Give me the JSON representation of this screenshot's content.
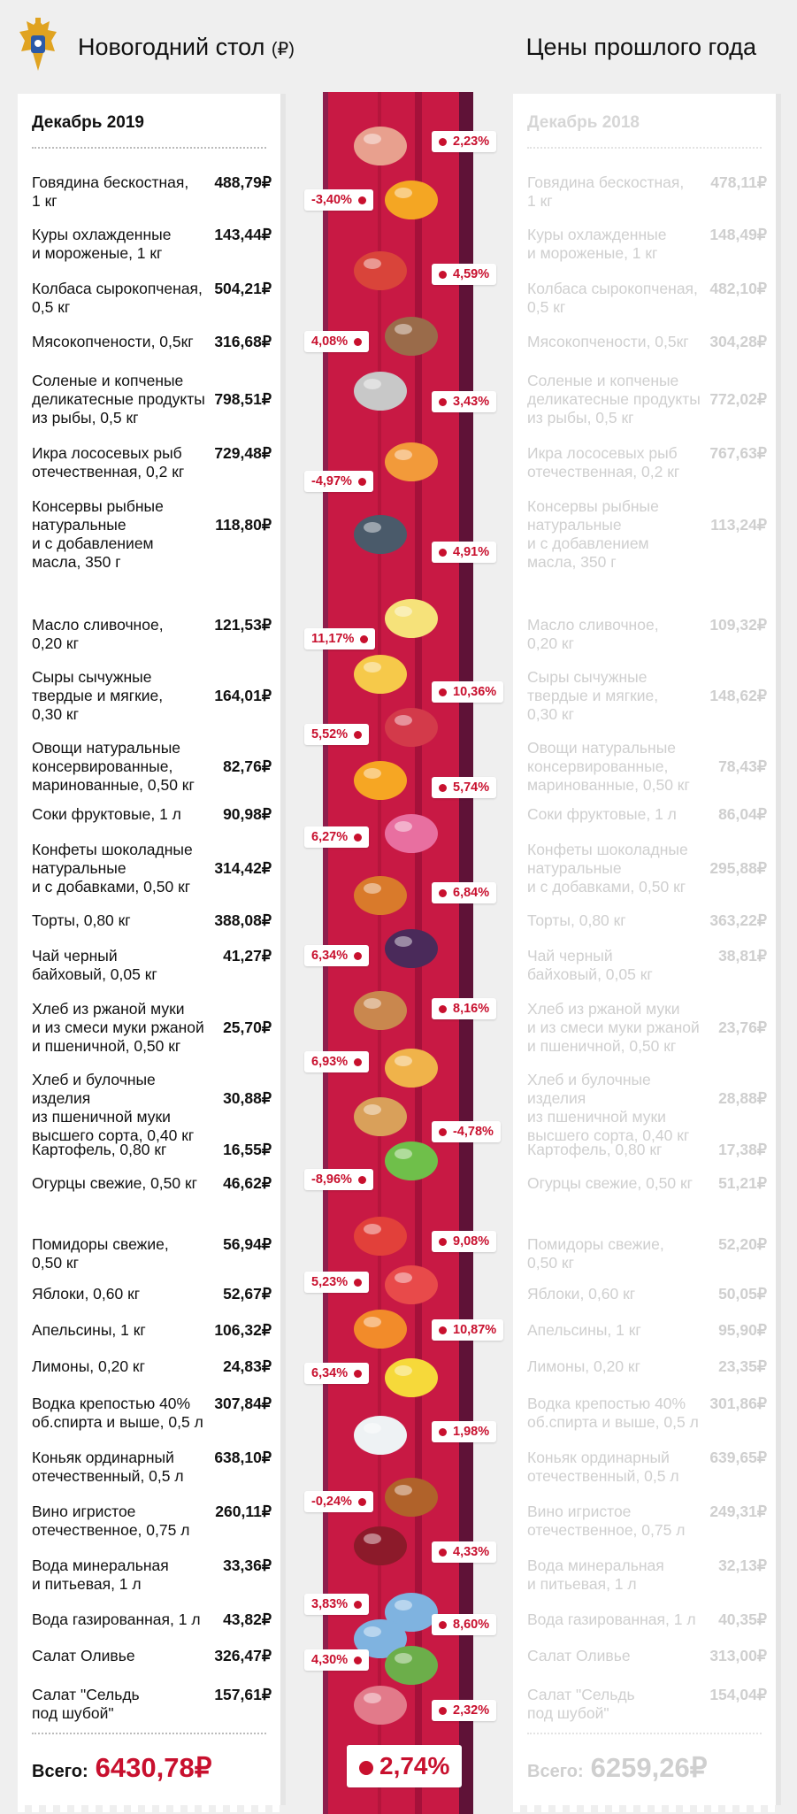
{
  "header": {
    "title": "Новогодний стол",
    "currency": "(₽)",
    "right_title": "Цены прошлого года"
  },
  "left": {
    "head": "Декабрь 2019",
    "total_label": "Всего:",
    "total_value": "6430,78₽"
  },
  "right": {
    "head": "Декабрь 2018",
    "total_label": "Всего:",
    "total_value": "6259,26₽"
  },
  "items": [
    {
      "name": "Говядина бескостная,\n1 кг",
      "p19": "488,79₽",
      "p18": "478,11₽",
      "change": "2,23%",
      "side": "r"
    },
    {
      "name": "Куры охлажденные\nи мороженые, 1 кг",
      "p19": "143,44₽",
      "p18": "148,49₽",
      "change": "-3,40%",
      "side": "l"
    },
    {
      "name": "Колбаса сырокопченая,\n0,5 кг",
      "p19": "504,21₽",
      "p18": "482,10₽",
      "change": "4,59%",
      "side": "r"
    },
    {
      "name": "Мясокопчености, 0,5кг",
      "p19": "316,68₽",
      "p18": "304,28₽",
      "change": "4,08%",
      "side": "l"
    },
    {
      "name": "Соленые и копченые\nделикатесные продукты\nиз рыбы, 0,5 кг",
      "p19": "798,51₽",
      "p18": "772,02₽",
      "change": "3,43%",
      "side": "r"
    },
    {
      "name": "Икра лососевых рыб\nотечественная, 0,2 кг",
      "p19": "729,48₽",
      "p18": "767,63₽",
      "change": "-4,97%",
      "side": "l"
    },
    {
      "name": "Консервы рыбные\nнатуральные\nи с добавлением\nмасла, 350 г",
      "p19": "118,80₽",
      "p18": "113,24₽",
      "change": "4,91%",
      "side": "r"
    },
    {
      "name": "Масло сливочное,\n0,20 кг",
      "p19": "121,53₽",
      "p18": "109,32₽",
      "change": "11,17%",
      "side": "l"
    },
    {
      "name": "Сыры сычужные\nтвердые и мягкие,\n0,30 кг",
      "p19": "164,01₽",
      "p18": "148,62₽",
      "change": "10,36%",
      "side": "r"
    },
    {
      "name": "Овощи натуральные\nконсервированные,\nмаринованные, 0,50 кг",
      "p19": "82,76₽",
      "p18": "78,43₽",
      "change": "5,52%",
      "side": "l"
    },
    {
      "name": "Соки фруктовые, 1 л",
      "p19": "90,98₽",
      "p18": "86,04₽",
      "change": "5,74%",
      "side": "r"
    },
    {
      "name": "Конфеты шоколадные\nнатуральные\nи с добавками, 0,50 кг",
      "p19": "314,42₽",
      "p18": "295,88₽",
      "change": "6,27%",
      "side": "l"
    },
    {
      "name": "Торты, 0,80 кг",
      "p19": "388,08₽",
      "p18": "363,22₽",
      "change": "6,84%",
      "side": "r"
    },
    {
      "name": "Чай черный\nбайховый, 0,05 кг",
      "p19": "41,27₽",
      "p18": "38,81₽",
      "change": "6,34%",
      "side": "l"
    },
    {
      "name": "Хлеб из ржаной муки\nи из смеси муки ржаной\nи пшеничной, 0,50 кг",
      "p19": "25,70₽",
      "p18": "23,76₽",
      "change": "8,16%",
      "side": "r"
    },
    {
      "name": "Хлеб и булочные изделия\nиз пшеничной муки\nвысшего сорта, 0,40 кг",
      "p19": "30,88₽",
      "p18": "28,88₽",
      "change": "6,93%",
      "side": "l"
    },
    {
      "name": "Картофель, 0,80 кг",
      "p19": "16,55₽",
      "p18": "17,38₽",
      "change": "-4,78%",
      "side": "r"
    },
    {
      "name": "Огурцы свежие, 0,50 кг",
      "p19": "46,62₽",
      "p18": "51,21₽",
      "change": "-8,96%",
      "side": "l"
    },
    {
      "name": "Помидоры свежие,\n0,50 кг",
      "p19": "56,94₽",
      "p18": "52,20₽",
      "change": "9,08%",
      "side": "r"
    },
    {
      "name": "Яблоки, 0,60 кг",
      "p19": "52,67₽",
      "p18": "50,05₽",
      "change": "5,23%",
      "side": "l"
    },
    {
      "name": "Апельсины, 1 кг",
      "p19": "106,32₽",
      "p18": "95,90₽",
      "change": "10,87%",
      "side": "r"
    },
    {
      "name": "Лимоны, 0,20 кг",
      "p19": "24,83₽",
      "p18": "23,35₽",
      "change": "6,34%",
      "side": "l"
    },
    {
      "name": "Водка крепостью 40%\nоб.спирта и выше, 0,5 л",
      "p19": "307,84₽",
      "p18": "301,86₽",
      "change": "1,98%",
      "side": "r"
    },
    {
      "name": "Коньяк ординарный\nотечественный, 0,5 л",
      "p19": "638,10₽",
      "p18": "639,65₽",
      "change": "-0,24%",
      "side": "l"
    },
    {
      "name": "Вино игристое\nотечественное, 0,75 л",
      "p19": "260,11₽",
      "p18": "249,31₽",
      "change": "4,33%",
      "side": "r"
    },
    {
      "name": "Вода минеральная\nи питьевая, 1 л",
      "p19": "33,36₽",
      "p18": "32,13₽",
      "change": "3,83%",
      "side": "l"
    },
    {
      "name": "Вода газированная, 1 л",
      "p19": "43,82₽",
      "p18": "40,35₽",
      "change": "8,60%",
      "side": "r"
    },
    {
      "name": "Салат Оливье",
      "p19": "326,47₽",
      "p18": "313,00₽",
      "change": "4,30%",
      "side": "l"
    },
    {
      "name": "Салат \"Сельдь\nпод шубой\"",
      "p19": "157,61₽",
      "p18": "154,04₽",
      "change": "2,32%",
      "side": "r"
    }
  ],
  "total_change": "2,74%",
  "colors": {
    "accent": "#c8102e",
    "band": "#c81944",
    "muted": "#cfcfcf"
  }
}
